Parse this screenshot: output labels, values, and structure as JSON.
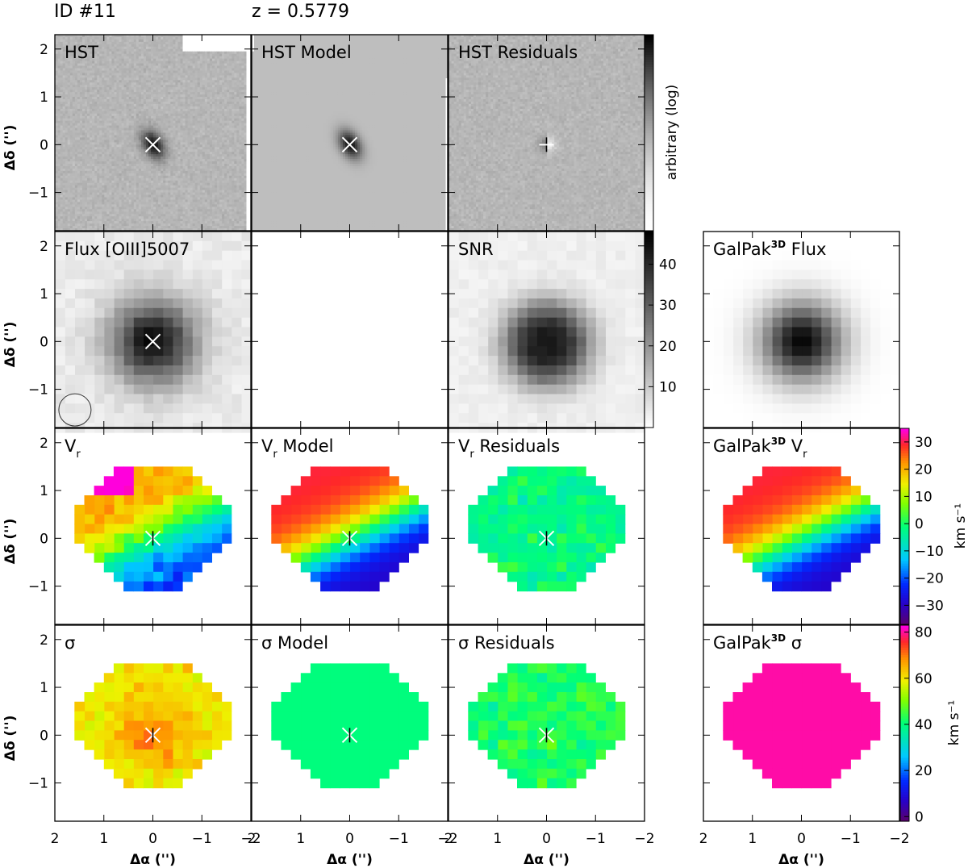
{
  "header": {
    "id_label": "ID #11",
    "z_label": "z = 0.5779"
  },
  "chart_data": {
    "type": "heatmap",
    "ticks": {
      "y": [
        2,
        1,
        0,
        -1
      ],
      "y_labels": [
        "2",
        "1",
        "0",
        "−1"
      ],
      "x": [
        2,
        1,
        0,
        -1,
        -2
      ],
      "x_labels": [
        "2",
        "1",
        "0",
        "−1",
        "−2"
      ]
    },
    "ylabel": "Δδ ('')",
    "xlabel": "Δα ('')",
    "xlim": [
      2.0,
      -2.0
    ],
    "ylim": [
      -1.8,
      2.3
    ],
    "panels": [
      {
        "row": 0,
        "col": 0,
        "key": "hst",
        "title": "HST",
        "center_marker": "x"
      },
      {
        "row": 0,
        "col": 1,
        "key": "hst_model",
        "title": "HST Model",
        "center_marker": "x"
      },
      {
        "row": 0,
        "col": 2,
        "key": "hst_resid",
        "title": "HST Residuals",
        "center_marker": "plus"
      },
      {
        "row": 1,
        "col": 0,
        "key": "flux",
        "title": "Flux [OIII]5007",
        "center_marker": "x",
        "beam_circle": true
      },
      {
        "row": 1,
        "col": 1,
        "key": "empty",
        "title": ""
      },
      {
        "row": 1,
        "col": 2,
        "key": "snr",
        "title": "SNR"
      },
      {
        "row": 1,
        "col": 4,
        "key": "gp_flux",
        "title": "GalPak",
        "title_sup": "3D",
        "title_tail": " Flux"
      },
      {
        "row": 2,
        "col": 0,
        "key": "vr",
        "title": "V",
        "title_sub": "r",
        "title_tail": "",
        "center_marker": "star"
      },
      {
        "row": 2,
        "col": 1,
        "key": "vr_model",
        "title": "V",
        "title_sub": "r",
        "title_tail": " Model",
        "center_marker": "star"
      },
      {
        "row": 2,
        "col": 2,
        "key": "vr_resid",
        "title": "V",
        "title_sub": "r",
        "title_tail": " Residuals",
        "center_marker": "star"
      },
      {
        "row": 2,
        "col": 4,
        "key": "gp_vr",
        "title": "GalPak",
        "title_sup": "3D",
        "title_tail": " V",
        "title_sub2": "r"
      },
      {
        "row": 3,
        "col": 0,
        "key": "sigma",
        "title": "σ",
        "center_marker": "star"
      },
      {
        "row": 3,
        "col": 1,
        "key": "sigma_model",
        "title": "σ Model",
        "center_marker": "star"
      },
      {
        "row": 3,
        "col": 2,
        "key": "sigma_resid",
        "title": "σ Residuals",
        "center_marker": "star"
      },
      {
        "row": 3,
        "col": 4,
        "key": "gp_sigma",
        "title": "GalPak",
        "title_sup": "3D",
        "title_tail": " σ"
      }
    ],
    "colorbars": [
      {
        "key": "hst",
        "label": "arbitrary (log)",
        "scale": "log",
        "ticks": [],
        "tick_labels": []
      },
      {
        "key": "snr",
        "label": "",
        "range": [
          0,
          48
        ],
        "ticks": [
          10,
          20,
          30,
          40
        ],
        "tick_labels": [
          "10",
          "20",
          "30",
          "40"
        ]
      },
      {
        "key": "vr",
        "label": "km s⁻¹",
        "range": [
          -37,
          35
        ],
        "ticks": [
          -30,
          -20,
          -10,
          0,
          10,
          20,
          30
        ],
        "tick_labels": [
          "−30",
          "−20",
          "−10",
          "0",
          "10",
          "20",
          "30"
        ]
      },
      {
        "key": "sigma",
        "label": "km s⁻¹",
        "range": [
          -2,
          83
        ],
        "ticks": [
          0,
          20,
          40,
          60,
          80
        ],
        "tick_labels": [
          "0",
          "20",
          "40",
          "60",
          "80"
        ]
      }
    ]
  }
}
